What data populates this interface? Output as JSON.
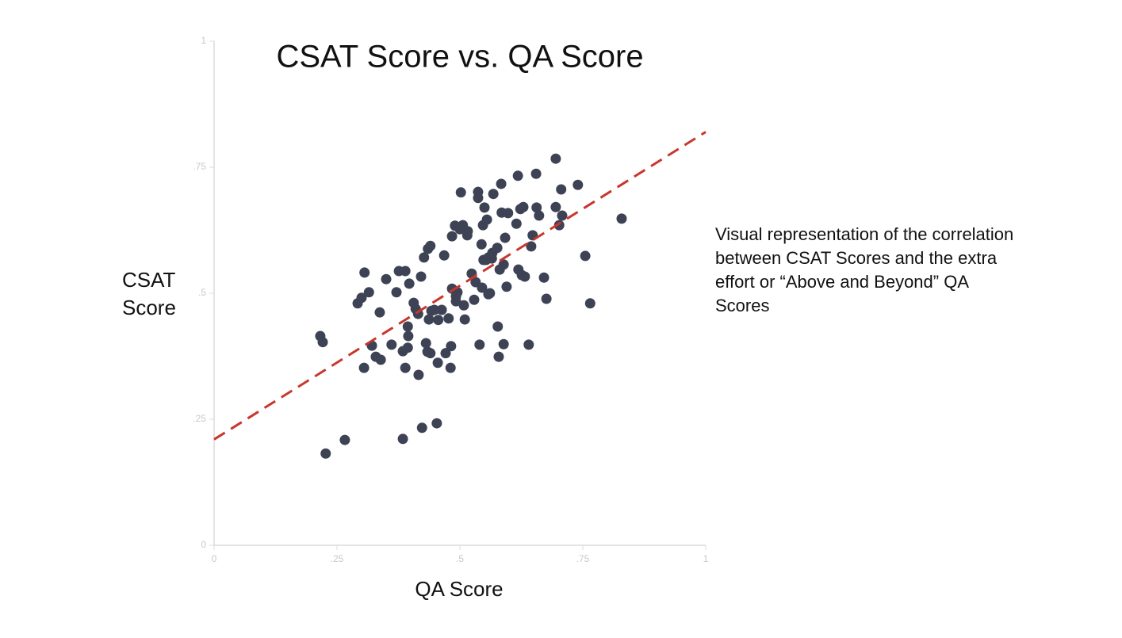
{
  "chart_data": {
    "type": "scatter",
    "title": "CSAT Score vs. QA Score",
    "xlabel": "QA Score",
    "ylabel": "CSAT Score",
    "annotation": "Visual representation of the correlation between CSAT Scores and the extra effort or “Above and Beyond” QA Scores",
    "color": "#3d4354",
    "x": [
      0.216,
      0.221,
      0.227,
      0.266,
      0.292,
      0.3,
      0.306,
      0.305,
      0.315,
      0.321,
      0.329,
      0.337,
      0.339,
      0.35,
      0.361,
      0.371,
      0.376,
      0.384,
      0.389,
      0.389,
      0.384,
      0.394,
      0.394,
      0.395,
      0.397,
      0.406,
      0.41,
      0.415,
      0.416,
      0.421,
      0.423,
      0.427,
      0.431,
      0.434,
      0.435,
      0.437,
      0.44,
      0.44,
      0.442,
      0.448,
      0.453,
      0.455,
      0.456,
      0.463,
      0.468,
      0.471,
      0.477,
      0.481,
      0.482,
      0.484,
      0.484,
      0.49,
      0.492,
      0.492,
      0.495,
      0.5,
      0.502,
      0.506,
      0.508,
      0.51,
      0.515,
      0.516,
      0.524,
      0.529,
      0.532,
      0.537,
      0.537,
      0.54,
      0.544,
      0.545,
      0.547,
      0.548,
      0.55,
      0.553,
      0.555,
      0.558,
      0.558,
      0.561,
      0.565,
      0.566,
      0.568,
      0.576,
      0.577,
      0.579,
      0.581,
      0.584,
      0.585,
      0.589,
      0.589,
      0.592,
      0.595,
      0.598,
      0.615,
      0.618,
      0.619,
      0.623,
      0.626,
      0.629,
      0.632,
      0.64,
      0.645,
      0.648,
      0.655,
      0.656,
      0.661,
      0.671,
      0.676,
      0.695,
      0.695,
      0.702,
      0.706,
      0.708,
      0.74,
      0.755,
      0.765,
      0.829
    ],
    "values": [
      0.415,
      0.403,
      0.182,
      0.209,
      0.48,
      0.491,
      0.541,
      0.352,
      0.502,
      0.396,
      0.374,
      0.462,
      0.368,
      0.528,
      0.398,
      0.502,
      0.544,
      0.385,
      0.544,
      0.352,
      0.211,
      0.434,
      0.392,
      0.415,
      0.519,
      0.481,
      0.469,
      0.459,
      0.338,
      0.533,
      0.233,
      0.571,
      0.401,
      0.384,
      0.588,
      0.448,
      0.594,
      0.381,
      0.465,
      0.467,
      0.242,
      0.362,
      0.447,
      0.467,
      0.575,
      0.381,
      0.45,
      0.352,
      0.395,
      0.613,
      0.509,
      0.634,
      0.484,
      0.494,
      0.502,
      0.627,
      0.7,
      0.635,
      0.476,
      0.448,
      0.615,
      0.623,
      0.539,
      0.487,
      0.522,
      0.701,
      0.689,
      0.398,
      0.597,
      0.511,
      0.635,
      0.566,
      0.67,
      0.566,
      0.646,
      0.498,
      0.571,
      0.5,
      0.569,
      0.58,
      0.697,
      0.59,
      0.434,
      0.374,
      0.547,
      0.717,
      0.66,
      0.399,
      0.557,
      0.61,
      0.513,
      0.659,
      0.638,
      0.733,
      0.547,
      0.667,
      0.536,
      0.671,
      0.533,
      0.398,
      0.593,
      0.615,
      0.737,
      0.67,
      0.654,
      0.531,
      0.489,
      0.767,
      0.671,
      0.635,
      0.706,
      0.654,
      0.715,
      0.574,
      0.48,
      0.648
    ],
    "trend_line": {
      "color": "#c8372d",
      "x": [
        0,
        1
      ],
      "y": [
        0.21,
        0.82
      ]
    },
    "xlim": [
      0,
      1
    ],
    "ylim": [
      0,
      1
    ],
    "xticks": [
      0,
      {
        "value": 0.25,
        "label": ".25"
      },
      {
        "value": 0.5,
        "label": ".5"
      },
      {
        "value": 0.75,
        "label": ".75"
      },
      1
    ],
    "yticks": [
      0,
      {
        "value": 0.25,
        "label": ".25"
      },
      {
        "value": 0.5,
        "label": ".5"
      },
      {
        "value": 0.75,
        "label": ".75"
      },
      1
    ]
  }
}
